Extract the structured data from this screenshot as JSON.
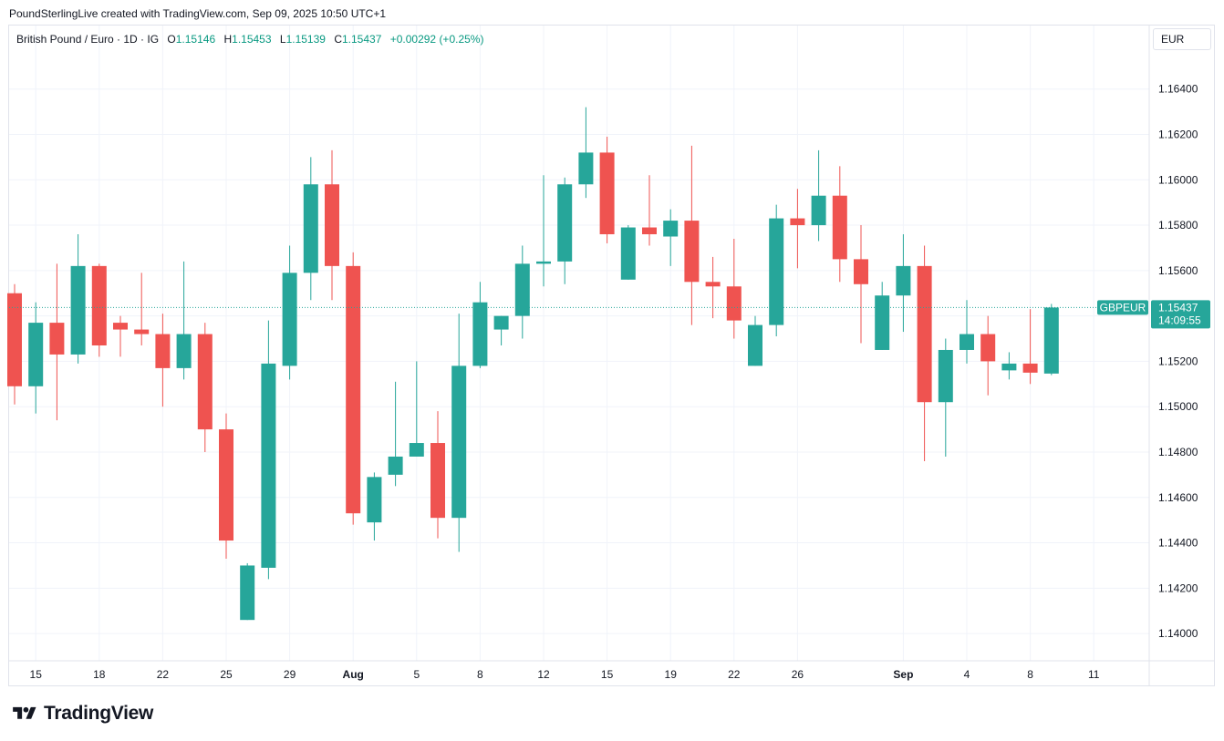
{
  "header": {
    "credit": "PoundSterlingLive created with TradingView.com, Sep 09, 2025 10:50 UTC+1"
  },
  "legend": {
    "symbol": "British Pound / Euro · 1D · IG",
    "open_label": "O",
    "open": "1.15146",
    "high_label": "H",
    "high": "1.15453",
    "low_label": "L",
    "low": "1.15139",
    "close_label": "C",
    "close": "1.15437",
    "change": "+0.00292 (+0.25%)"
  },
  "currency": "EUR",
  "price_badge": {
    "ticker": "GBPEUR",
    "price": "1.15437",
    "countdown": "14:09:55"
  },
  "brand": {
    "name": "TradingView"
  },
  "colors": {
    "up": "#26a69a",
    "down": "#ef5350",
    "grid": "#f0f3fa",
    "last_line": "#26a69a"
  },
  "chart_data": {
    "type": "candlestick",
    "title": "British Pound / Euro · 1D · IG",
    "ylim": [
      1.1388,
      1.1668
    ],
    "y_ticks": [
      "1.16400",
      "1.16200",
      "1.16000",
      "1.15800",
      "1.15600",
      "1.15400",
      "1.15200",
      "1.15000",
      "1.14800",
      "1.14600",
      "1.14400",
      "1.14200",
      "1.14000"
    ],
    "x_ticks": [
      {
        "label": "15",
        "index": 1,
        "bold": false
      },
      {
        "label": "18",
        "index": 4,
        "bold": false
      },
      {
        "label": "22",
        "index": 7,
        "bold": false
      },
      {
        "label": "25",
        "index": 10,
        "bold": false
      },
      {
        "label": "29",
        "index": 13,
        "bold": false
      },
      {
        "label": "Aug",
        "index": 16,
        "bold": true
      },
      {
        "label": "5",
        "index": 19,
        "bold": false
      },
      {
        "label": "8",
        "index": 22,
        "bold": false
      },
      {
        "label": "12",
        "index": 25,
        "bold": false
      },
      {
        "label": "15",
        "index": 28,
        "bold": false
      },
      {
        "label": "19",
        "index": 31,
        "bold": false
      },
      {
        "label": "22",
        "index": 34,
        "bold": false
      },
      {
        "label": "26",
        "index": 37,
        "bold": false
      },
      {
        "label": "Sep",
        "index": 42,
        "bold": true
      },
      {
        "label": "4",
        "index": 45,
        "bold": false
      },
      {
        "label": "8",
        "index": 48,
        "bold": false
      },
      {
        "label": "11",
        "index": 51,
        "bold": false
      }
    ],
    "last_price": 1.15437,
    "candles": [
      {
        "o": 1.155,
        "h": 1.1554,
        "l": 1.1501,
        "c": 1.1509
      },
      {
        "o": 1.1509,
        "h": 1.1546,
        "l": 1.1497,
        "c": 1.1537
      },
      {
        "o": 1.1537,
        "h": 1.1563,
        "l": 1.1494,
        "c": 1.1523
      },
      {
        "o": 1.1523,
        "h": 1.1576,
        "l": 1.1519,
        "c": 1.1562
      },
      {
        "o": 1.1562,
        "h": 1.1563,
        "l": 1.1522,
        "c": 1.1527
      },
      {
        "o": 1.1537,
        "h": 1.154,
        "l": 1.1522,
        "c": 1.1534
      },
      {
        "o": 1.1534,
        "h": 1.1559,
        "l": 1.1527,
        "c": 1.1532
      },
      {
        "o": 1.1532,
        "h": 1.1541,
        "l": 1.15,
        "c": 1.1517
      },
      {
        "o": 1.1517,
        "h": 1.1564,
        "l": 1.1512,
        "c": 1.1532
      },
      {
        "o": 1.1532,
        "h": 1.1537,
        "l": 1.148,
        "c": 1.149
      },
      {
        "o": 1.149,
        "h": 1.1497,
        "l": 1.1433,
        "c": 1.1441
      },
      {
        "o": 1.1406,
        "h": 1.1431,
        "l": 1.1406,
        "c": 1.143
      },
      {
        "o": 1.1429,
        "h": 1.1538,
        "l": 1.1424,
        "c": 1.1519
      },
      {
        "o": 1.1518,
        "h": 1.1571,
        "l": 1.1512,
        "c": 1.1559
      },
      {
        "o": 1.1559,
        "h": 1.161,
        "l": 1.1547,
        "c": 1.1598
      },
      {
        "o": 1.1598,
        "h": 1.1613,
        "l": 1.1547,
        "c": 1.1562
      },
      {
        "o": 1.1562,
        "h": 1.1568,
        "l": 1.1448,
        "c": 1.1453
      },
      {
        "o": 1.1449,
        "h": 1.1471,
        "l": 1.1441,
        "c": 1.1469
      },
      {
        "o": 1.147,
        "h": 1.1511,
        "l": 1.1465,
        "c": 1.1478
      },
      {
        "o": 1.1478,
        "h": 1.152,
        "l": 1.1478,
        "c": 1.1484
      },
      {
        "o": 1.1484,
        "h": 1.1498,
        "l": 1.1442,
        "c": 1.1451
      },
      {
        "o": 1.1451,
        "h": 1.1541,
        "l": 1.1436,
        "c": 1.1518
      },
      {
        "o": 1.1518,
        "h": 1.1555,
        "l": 1.1517,
        "c": 1.1546
      },
      {
        "o": 1.1534,
        "h": 1.154,
        "l": 1.1527,
        "c": 1.154
      },
      {
        "o": 1.154,
        "h": 1.1571,
        "l": 1.153,
        "c": 1.1563
      },
      {
        "o": 1.1563,
        "h": 1.1602,
        "l": 1.1553,
        "c": 1.1564
      },
      {
        "o": 1.1564,
        "h": 1.1601,
        "l": 1.1554,
        "c": 1.1598
      },
      {
        "o": 1.1598,
        "h": 1.1632,
        "l": 1.1592,
        "c": 1.1612
      },
      {
        "o": 1.1612,
        "h": 1.1619,
        "l": 1.1572,
        "c": 1.1576
      },
      {
        "o": 1.1556,
        "h": 1.158,
        "l": 1.1556,
        "c": 1.1579
      },
      {
        "o": 1.1579,
        "h": 1.1602,
        "l": 1.1571,
        "c": 1.1576
      },
      {
        "o": 1.1575,
        "h": 1.1587,
        "l": 1.1562,
        "c": 1.1582
      },
      {
        "o": 1.1582,
        "h": 1.1615,
        "l": 1.1536,
        "c": 1.1555
      },
      {
        "o": 1.1555,
        "h": 1.1566,
        "l": 1.1539,
        "c": 1.1553
      },
      {
        "o": 1.1553,
        "h": 1.1574,
        "l": 1.153,
        "c": 1.1538
      },
      {
        "o": 1.1518,
        "h": 1.154,
        "l": 1.1518,
        "c": 1.1536
      },
      {
        "o": 1.1536,
        "h": 1.1589,
        "l": 1.1531,
        "c": 1.1583
      },
      {
        "o": 1.1583,
        "h": 1.1596,
        "l": 1.1561,
        "c": 1.158
      },
      {
        "o": 1.158,
        "h": 1.1613,
        "l": 1.1573,
        "c": 1.1593
      },
      {
        "o": 1.1593,
        "h": 1.1606,
        "l": 1.1555,
        "c": 1.1565
      },
      {
        "o": 1.1565,
        "h": 1.158,
        "l": 1.1528,
        "c": 1.1554
      },
      {
        "o": 1.1525,
        "h": 1.1555,
        "l": 1.1525,
        "c": 1.1549
      },
      {
        "o": 1.1549,
        "h": 1.1576,
        "l": 1.1533,
        "c": 1.1562
      },
      {
        "o": 1.1562,
        "h": 1.1571,
        "l": 1.1476,
        "c": 1.1502
      },
      {
        "o": 1.1502,
        "h": 1.153,
        "l": 1.1478,
        "c": 1.1525
      },
      {
        "o": 1.1525,
        "h": 1.1547,
        "l": 1.1519,
        "c": 1.1532
      },
      {
        "o": 1.1532,
        "h": 1.154,
        "l": 1.1505,
        "c": 1.152
      },
      {
        "o": 1.1516,
        "h": 1.1524,
        "l": 1.1512,
        "c": 1.1519
      },
      {
        "o": 1.1519,
        "h": 1.1543,
        "l": 1.151,
        "c": 1.1515
      },
      {
        "o": 1.15146,
        "h": 1.15453,
        "l": 1.15139,
        "c": 1.15437
      }
    ]
  }
}
